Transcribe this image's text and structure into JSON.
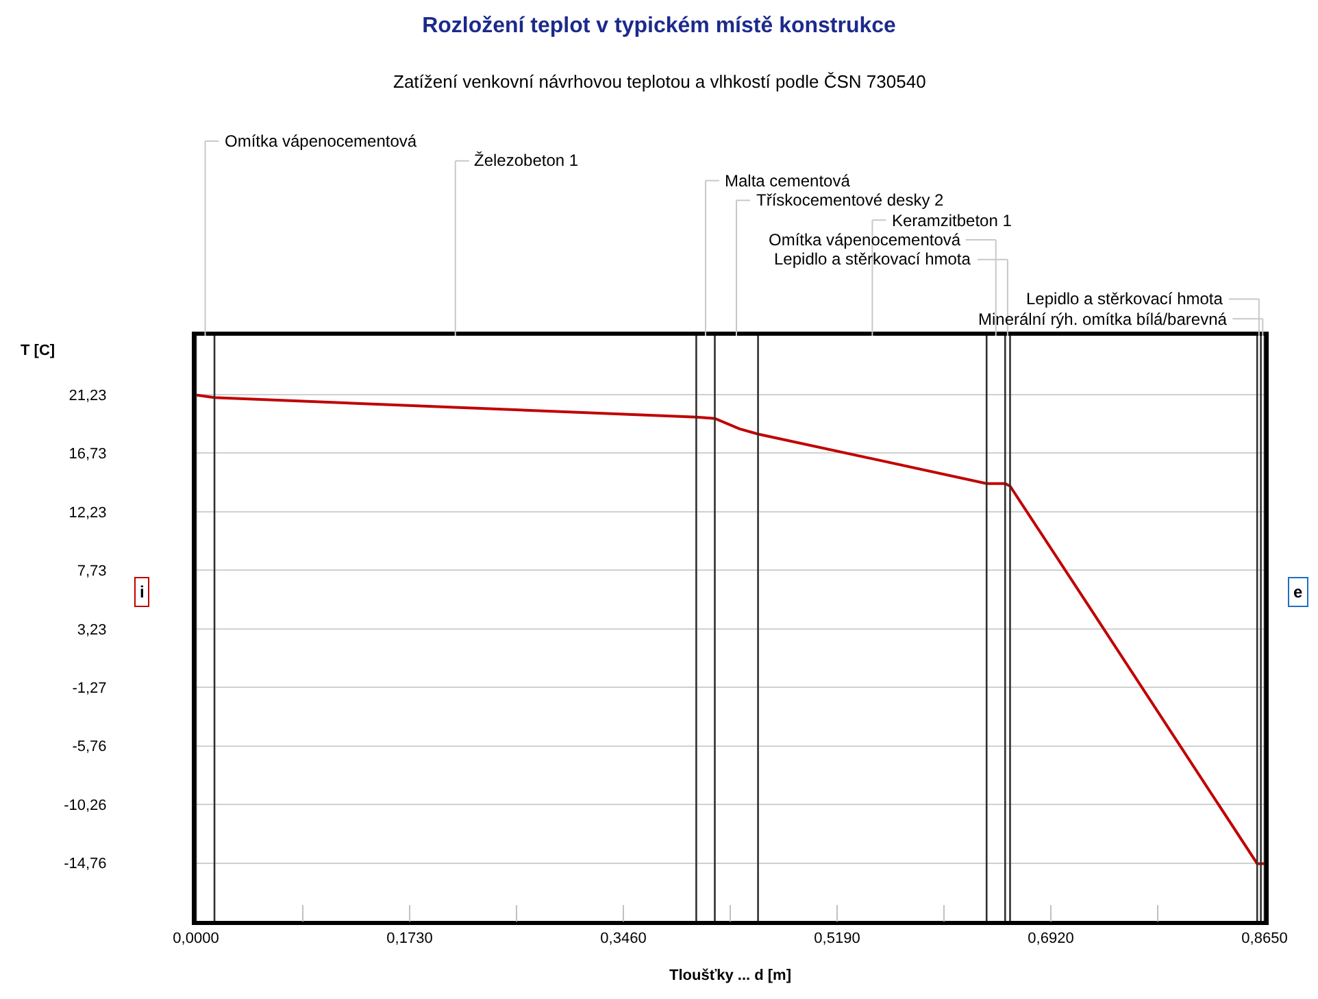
{
  "chart_data": {
    "type": "line",
    "title": "Rozložení teplot v typickém místě konstrukce",
    "subtitle": "Zatížení venkovní návrhovou teplotou a vlhkostí podle ČSN 730540",
    "xlabel": "Tloušťky ... d [m]",
    "ylabel": "T [C]",
    "annotations": [
      "Omítka vápenocementová",
      "Železobeton 1",
      "Malta cementová",
      "Třískocementové desky 2",
      "Keramzitbeton 1",
      "Omítka vápenocementová",
      "Lepidlo a stěrkovací hmota",
      "Lepidlo a stěrkovací hmota",
      "Minerální rýh. omítka bílá/barevná",
      "i",
      "e"
    ],
    "x": [
      0,
      0.015,
      0.405,
      0.42,
      0.44,
      0.455,
      0.64,
      0.655,
      0.659,
      0.7212,
      0.859,
      0.865
    ],
    "series": [
      {
        "color": "#c00000",
        "values": [
          21.2,
          21.0,
          19.5,
          19.4,
          18.6,
          18.2,
          14.4,
          14.4,
          14.2,
          5.2,
          -14.8,
          -14.8
        ]
      }
    ],
    "xlim": [
      0,
      0.865
    ],
    "xticks": [
      {
        "value": 0,
        "label": "0,0000"
      },
      {
        "value": 0.0865,
        "label": null
      },
      {
        "value": 0.173,
        "label": "0,1730"
      },
      {
        "value": 0.2595,
        "label": null
      },
      {
        "value": 0.346,
        "label": "0,3460"
      },
      {
        "value": 0.4325,
        "label": null
      },
      {
        "value": 0.519,
        "label": "0,5190"
      },
      {
        "value": 0.6055,
        "label": null
      },
      {
        "value": 0.692,
        "label": "0,6920"
      },
      {
        "value": 0.7785,
        "label": null
      },
      {
        "value": 0.865,
        "label": "0,8650"
      }
    ],
    "ylim": [
      -19.2,
      25.75
    ],
    "yticks": [
      {
        "value": -14.76,
        "label": "-14,76"
      },
      {
        "value": -10.26,
        "label": "-10,26"
      },
      {
        "value": -5.76,
        "label": "-5,76"
      },
      {
        "value": -1.27,
        "label": "-1,27"
      },
      {
        "value": 3.23,
        "label": "3,23"
      },
      {
        "value": 7.73,
        "label": "7,73"
      },
      {
        "value": 12.23,
        "label": "12,23"
      },
      {
        "value": 16.73,
        "label": "16,73"
      },
      {
        "value": 21.23,
        "label": "21,23"
      }
    ],
    "grid": "y",
    "legend": false,
    "marker": "none",
    "line_style": "solid",
    "ref_lines": [
      {
        "axis": "x",
        "value": 0
      },
      {
        "axis": "x",
        "value": 0.015
      },
      {
        "axis": "x",
        "value": 0.405
      },
      {
        "axis": "x",
        "value": 0.42
      },
      {
        "axis": "x",
        "value": 0.455
      },
      {
        "axis": "x",
        "value": 0.64
      },
      {
        "axis": "x",
        "value": 0.655
      },
      {
        "axis": "x",
        "value": 0.659
      },
      {
        "axis": "x",
        "value": 0.859
      },
      {
        "axis": "x",
        "value": 0.862
      },
      {
        "axis": "x",
        "value": 0.865
      }
    ]
  }
}
